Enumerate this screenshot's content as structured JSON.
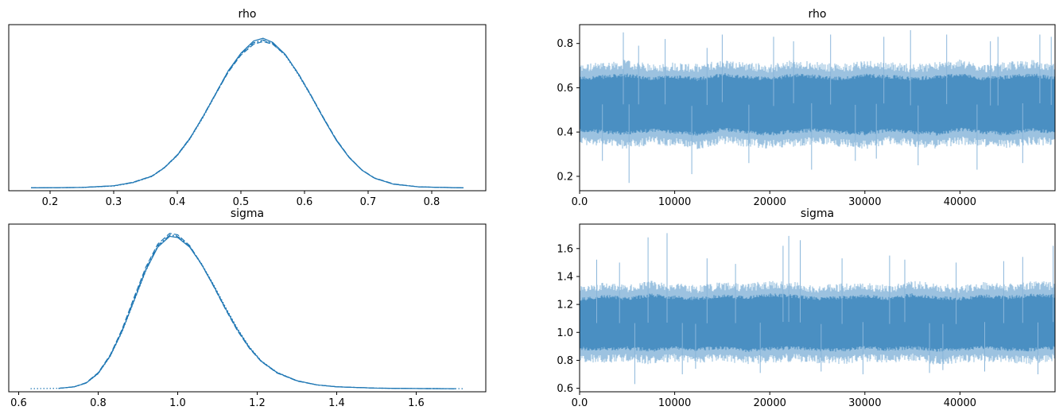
{
  "chart_data": [
    {
      "type": "line",
      "kind": "density",
      "title": "rho",
      "xticks": [
        0.2,
        0.3,
        0.4,
        0.5,
        0.6,
        0.7,
        0.8
      ],
      "xlim": [
        0.135,
        0.885
      ],
      "ylim": [
        -0.1,
        6.0
      ],
      "yaxis_ticks_shown": false,
      "color": "#1f77b4",
      "series": [
        {
          "linestyle": "solid",
          "x": [
            0.17,
            0.25,
            0.3,
            0.33,
            0.36,
            0.38,
            0.4,
            0.42,
            0.44,
            0.46,
            0.48,
            0.5,
            0.52,
            0.535,
            0.55,
            0.57,
            0.59,
            0.61,
            0.63,
            0.65,
            0.67,
            0.69,
            0.71,
            0.74,
            0.78,
            0.85
          ],
          "y": [
            0.005,
            0.02,
            0.08,
            0.2,
            0.43,
            0.75,
            1.2,
            1.82,
            2.6,
            3.45,
            4.3,
            4.95,
            5.4,
            5.5,
            5.35,
            4.9,
            4.2,
            3.4,
            2.55,
            1.75,
            1.12,
            0.66,
            0.36,
            0.14,
            0.04,
            0.005
          ]
        },
        {
          "linestyle": "dashed",
          "x": [
            0.17,
            0.25,
            0.3,
            0.33,
            0.36,
            0.38,
            0.4,
            0.42,
            0.44,
            0.46,
            0.48,
            0.5,
            0.52,
            0.535,
            0.55,
            0.57,
            0.59,
            0.61,
            0.63,
            0.65,
            0.67,
            0.69,
            0.71,
            0.74,
            0.78,
            0.85
          ],
          "y": [
            0.005,
            0.02,
            0.08,
            0.21,
            0.44,
            0.76,
            1.22,
            1.84,
            2.6,
            3.43,
            4.25,
            4.88,
            5.28,
            5.38,
            5.28,
            4.88,
            4.22,
            3.42,
            2.58,
            1.78,
            1.14,
            0.67,
            0.37,
            0.15,
            0.04,
            0.005
          ]
        },
        {
          "linestyle": "dotted",
          "x": [
            0.17,
            0.25,
            0.3,
            0.33,
            0.36,
            0.38,
            0.4,
            0.42,
            0.44,
            0.46,
            0.48,
            0.5,
            0.52,
            0.535,
            0.55,
            0.57,
            0.59,
            0.61,
            0.63,
            0.65,
            0.67,
            0.69,
            0.71,
            0.74,
            0.78,
            0.85
          ],
          "y": [
            0.005,
            0.02,
            0.07,
            0.19,
            0.42,
            0.74,
            1.19,
            1.8,
            2.57,
            3.42,
            4.26,
            4.92,
            5.32,
            5.42,
            5.3,
            4.86,
            4.17,
            3.38,
            2.54,
            1.76,
            1.13,
            0.66,
            0.36,
            0.14,
            0.04,
            0.005
          ]
        },
        {
          "linestyle": "dashdot",
          "x": [
            0.17,
            0.25,
            0.3,
            0.33,
            0.36,
            0.38,
            0.4,
            0.42,
            0.44,
            0.46,
            0.48,
            0.5,
            0.52,
            0.535,
            0.55,
            0.57,
            0.59,
            0.61,
            0.63,
            0.65,
            0.67,
            0.69,
            0.71,
            0.74,
            0.78,
            0.85
          ],
          "y": [
            0.005,
            0.02,
            0.08,
            0.2,
            0.43,
            0.75,
            1.21,
            1.83,
            2.62,
            3.46,
            4.3,
            4.93,
            5.34,
            5.44,
            5.32,
            4.9,
            4.2,
            3.4,
            2.56,
            1.77,
            1.13,
            0.66,
            0.36,
            0.14,
            0.04,
            0.005
          ]
        }
      ]
    },
    {
      "type": "line",
      "kind": "trace",
      "title": "rho",
      "xticks": [
        0,
        10000,
        20000,
        30000,
        40000
      ],
      "yticks": [
        0.2,
        0.4,
        0.6,
        0.8
      ],
      "xlim": [
        0,
        50000
      ],
      "ylim": [
        0.135,
        0.885
      ],
      "color": "#1f77b4",
      "band": [
        [
          0,
          0.35,
          0.7
        ],
        [
          2500,
          0.34,
          0.71
        ],
        [
          5000,
          0.33,
          0.72
        ],
        [
          7500,
          0.35,
          0.7
        ],
        [
          10000,
          0.34,
          0.71
        ],
        [
          12500,
          0.33,
          0.7
        ],
        [
          15000,
          0.35,
          0.72
        ],
        [
          17500,
          0.34,
          0.71
        ],
        [
          20000,
          0.33,
          0.7
        ],
        [
          22500,
          0.34,
          0.72
        ],
        [
          25000,
          0.35,
          0.71
        ],
        [
          27500,
          0.34,
          0.7
        ],
        [
          30000,
          0.33,
          0.72
        ],
        [
          32500,
          0.35,
          0.71
        ],
        [
          35000,
          0.34,
          0.7
        ],
        [
          37500,
          0.33,
          0.71
        ],
        [
          40000,
          0.35,
          0.72
        ],
        [
          42500,
          0.34,
          0.7
        ],
        [
          45000,
          0.33,
          0.71
        ],
        [
          47500,
          0.35,
          0.72
        ],
        [
          50000,
          0.34,
          0.7
        ]
      ],
      "spikes": [
        [
          4600,
          0.85
        ],
        [
          5200,
          0.17
        ],
        [
          6200,
          0.79
        ],
        [
          9000,
          0.82
        ],
        [
          11800,
          0.21
        ],
        [
          13400,
          0.78
        ],
        [
          15000,
          0.84
        ],
        [
          17800,
          0.26
        ],
        [
          20400,
          0.83
        ],
        [
          24400,
          0.23
        ],
        [
          26400,
          0.84
        ],
        [
          29000,
          0.27
        ],
        [
          32000,
          0.83
        ],
        [
          34800,
          0.86
        ],
        [
          35600,
          0.25
        ],
        [
          38600,
          0.84
        ],
        [
          41800,
          0.23
        ],
        [
          44000,
          0.83
        ],
        [
          46600,
          0.26
        ],
        [
          48400,
          0.84
        ],
        [
          49600,
          0.83
        ],
        [
          2400,
          0.27
        ],
        [
          22500,
          0.81
        ],
        [
          31200,
          0.28
        ],
        [
          43200,
          0.81
        ]
      ]
    },
    {
      "type": "line",
      "kind": "density",
      "title": "sigma",
      "xticks": [
        0.6,
        0.8,
        1.0,
        1.2,
        1.4,
        1.6
      ],
      "xlim": [
        0.575,
        1.775
      ],
      "ylim": [
        -0.08,
        4.3
      ],
      "yaxis_ticks_shown": false,
      "color": "#1f77b4",
      "series": [
        {
          "linestyle": "solid",
          "x": [
            0.7,
            0.74,
            0.77,
            0.8,
            0.83,
            0.86,
            0.89,
            0.92,
            0.95,
            0.98,
            1.0,
            1.03,
            1.06,
            1.09,
            1.12,
            1.15,
            1.18,
            1.21,
            1.25,
            1.3,
            1.35,
            1.4,
            1.5,
            1.6,
            1.7
          ],
          "y": [
            0.01,
            0.05,
            0.15,
            0.4,
            0.85,
            1.5,
            2.3,
            3.1,
            3.7,
            3.98,
            3.95,
            3.7,
            3.25,
            2.7,
            2.1,
            1.55,
            1.08,
            0.72,
            0.42,
            0.21,
            0.1,
            0.05,
            0.015,
            0.004,
            0.001
          ]
        },
        {
          "linestyle": "dashed",
          "x": [
            0.7,
            0.74,
            0.77,
            0.8,
            0.83,
            0.86,
            0.89,
            0.92,
            0.95,
            0.98,
            1.0,
            1.03,
            1.06,
            1.09,
            1.12,
            1.15,
            1.18,
            1.21,
            1.25,
            1.3,
            1.35,
            1.4,
            1.5,
            1.6,
            1.7
          ],
          "y": [
            0.01,
            0.05,
            0.16,
            0.42,
            0.88,
            1.55,
            2.38,
            3.18,
            3.78,
            4.06,
            4.02,
            3.74,
            3.25,
            2.68,
            2.08,
            1.52,
            1.06,
            0.71,
            0.41,
            0.2,
            0.1,
            0.05,
            0.015,
            0.004,
            0.001
          ]
        },
        {
          "linestyle": "dotted",
          "x": [
            0.63,
            0.7,
            0.74,
            0.77,
            0.8,
            0.83,
            0.86,
            0.89,
            0.92,
            0.95,
            0.98,
            1.0,
            1.03,
            1.06,
            1.09,
            1.12,
            1.15,
            1.18,
            1.21,
            1.25,
            1.3,
            1.35,
            1.4,
            1.5,
            1.6,
            1.72
          ],
          "y": [
            0.001,
            0.01,
            0.05,
            0.15,
            0.39,
            0.84,
            1.48,
            2.28,
            3.08,
            3.72,
            4.02,
            3.99,
            3.72,
            3.27,
            2.73,
            2.14,
            1.58,
            1.1,
            0.73,
            0.43,
            0.21,
            0.1,
            0.05,
            0.015,
            0.004,
            0.001
          ]
        },
        {
          "linestyle": "dashdot",
          "x": [
            0.7,
            0.74,
            0.77,
            0.8,
            0.83,
            0.86,
            0.89,
            0.92,
            0.95,
            0.98,
            1.0,
            1.03,
            1.06,
            1.09,
            1.12,
            1.15,
            1.18,
            1.21,
            1.25,
            1.3,
            1.35,
            1.4,
            1.5,
            1.6,
            1.7
          ],
          "y": [
            0.01,
            0.05,
            0.15,
            0.41,
            0.86,
            1.52,
            2.33,
            3.13,
            3.74,
            4.01,
            3.97,
            3.71,
            3.24,
            2.69,
            2.1,
            1.54,
            1.07,
            0.72,
            0.42,
            0.21,
            0.1,
            0.05,
            0.015,
            0.004,
            0.001
          ]
        }
      ]
    },
    {
      "type": "line",
      "kind": "trace",
      "title": "sigma",
      "xticks": [
        0,
        10000,
        20000,
        30000,
        40000
      ],
      "yticks": [
        0.6,
        0.8,
        1.0,
        1.2,
        1.4,
        1.6
      ],
      "xlim": [
        0,
        50000
      ],
      "ylim": [
        0.575,
        1.775
      ],
      "color": "#1f77b4",
      "band": [
        [
          0,
          0.8,
          1.32
        ],
        [
          2500,
          0.79,
          1.35
        ],
        [
          5000,
          0.8,
          1.33
        ],
        [
          7500,
          0.78,
          1.36
        ],
        [
          10000,
          0.8,
          1.34
        ],
        [
          12500,
          0.79,
          1.33
        ],
        [
          15000,
          0.8,
          1.35
        ],
        [
          17500,
          0.78,
          1.34
        ],
        [
          20000,
          0.79,
          1.36
        ],
        [
          22500,
          0.8,
          1.35
        ],
        [
          25000,
          0.79,
          1.33
        ],
        [
          27500,
          0.78,
          1.34
        ],
        [
          30000,
          0.8,
          1.35
        ],
        [
          32500,
          0.79,
          1.33
        ],
        [
          35000,
          0.8,
          1.36
        ],
        [
          37500,
          0.78,
          1.34
        ],
        [
          40000,
          0.79,
          1.33
        ],
        [
          42500,
          0.8,
          1.35
        ],
        [
          45000,
          0.79,
          1.34
        ],
        [
          47500,
          0.78,
          1.36
        ],
        [
          50000,
          0.8,
          1.35
        ]
      ],
      "spikes": [
        [
          1800,
          1.52
        ],
        [
          4200,
          1.5
        ],
        [
          5800,
          0.63
        ],
        [
          7200,
          1.68
        ],
        [
          9200,
          1.71
        ],
        [
          10800,
          0.7
        ],
        [
          13400,
          1.53
        ],
        [
          16400,
          1.49
        ],
        [
          19000,
          0.71
        ],
        [
          21400,
          1.62
        ],
        [
          22000,
          1.69
        ],
        [
          23200,
          1.66
        ],
        [
          25400,
          0.72
        ],
        [
          27600,
          1.53
        ],
        [
          29800,
          0.7
        ],
        [
          32600,
          1.55
        ],
        [
          34200,
          1.52
        ],
        [
          36800,
          0.71
        ],
        [
          39600,
          1.5
        ],
        [
          42600,
          0.72
        ],
        [
          44600,
          1.51
        ],
        [
          46600,
          1.54
        ],
        [
          48200,
          0.7
        ],
        [
          49800,
          1.62
        ],
        [
          12200,
          0.74
        ],
        [
          38200,
          0.73
        ]
      ]
    }
  ]
}
